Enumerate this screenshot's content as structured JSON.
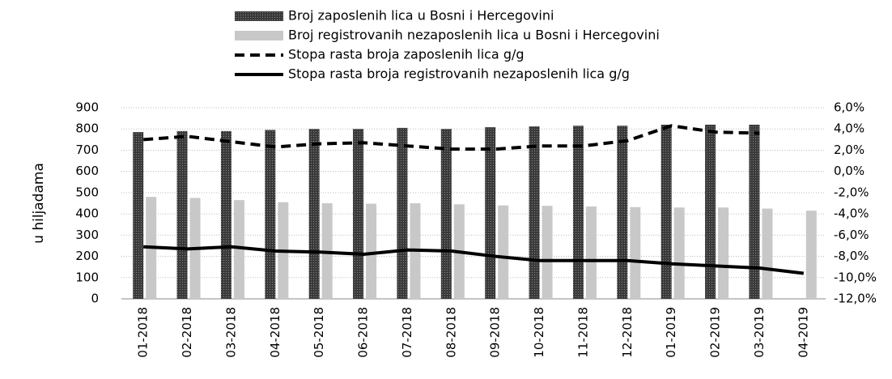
{
  "chart_data": {
    "type": "bar_line",
    "y_label": "u hiljadama",
    "categories": [
      "01-2018",
      "02-2018",
      "03-2018",
      "04-2018",
      "05-2018",
      "06-2018",
      "07-2018",
      "08-2018",
      "09-2018",
      "10-2018",
      "11-2018",
      "12-2018",
      "01-2019",
      "02-2019",
      "03-2019",
      "04-2019"
    ],
    "series": [
      {
        "name": "Broj zaposlenih lica u Bosni i Hercegovini",
        "type": "bar",
        "color": "#3a3a3a",
        "values": [
          785,
          790,
          790,
          795,
          800,
          800,
          805,
          800,
          808,
          812,
          815,
          815,
          820,
          820,
          820,
          null
        ]
      },
      {
        "name": "Broj registrovanih nezaposlenih lica u Bosni i Hercegovini",
        "type": "bar",
        "color": "#c8c8c8",
        "values": [
          480,
          475,
          465,
          455,
          450,
          448,
          450,
          445,
          440,
          438,
          435,
          432,
          430,
          430,
          425,
          415
        ]
      },
      {
        "name": "Stopa rasta broja zaposlenih lica g/g",
        "type": "line",
        "dashed": true,
        "color": "#000000",
        "axis": "y2",
        "values": [
          3.0,
          3.3,
          2.8,
          2.3,
          2.6,
          2.7,
          2.4,
          2.1,
          2.1,
          2.4,
          2.4,
          2.9,
          4.3,
          3.7,
          3.6,
          null
        ]
      },
      {
        "name": "Stopa rasta broja registrovanih nezaposlenih lica g/g",
        "type": "line",
        "dashed": false,
        "color": "#000000",
        "axis": "y2",
        "values": [
          -7.1,
          -7.3,
          -7.1,
          -7.5,
          -7.6,
          -7.8,
          -7.4,
          -7.5,
          -8.0,
          -8.4,
          -8.4,
          -8.4,
          -8.7,
          -8.9,
          -9.1,
          -9.6
        ]
      }
    ],
    "ylim": [
      0,
      900
    ],
    "yticks": [
      0,
      100,
      200,
      300,
      400,
      500,
      600,
      700,
      800,
      900
    ],
    "y2lim": [
      -12,
      6
    ],
    "y2ticks": [
      {
        "value": -12,
        "label": "-12,0%"
      },
      {
        "value": -10,
        "label": "-10,0%"
      },
      {
        "value": -8,
        "label": "-8,0%"
      },
      {
        "value": -6,
        "label": "-6,0%"
      },
      {
        "value": -4,
        "label": "-4,0%"
      },
      {
        "value": -2,
        "label": "-2,0%"
      },
      {
        "value": 0,
        "label": "0,0%"
      },
      {
        "value": 2,
        "label": "2,0%"
      },
      {
        "value": 4,
        "label": "4,0%"
      },
      {
        "value": 6,
        "label": "6,0%"
      }
    ],
    "grid": true,
    "legend": "top"
  }
}
